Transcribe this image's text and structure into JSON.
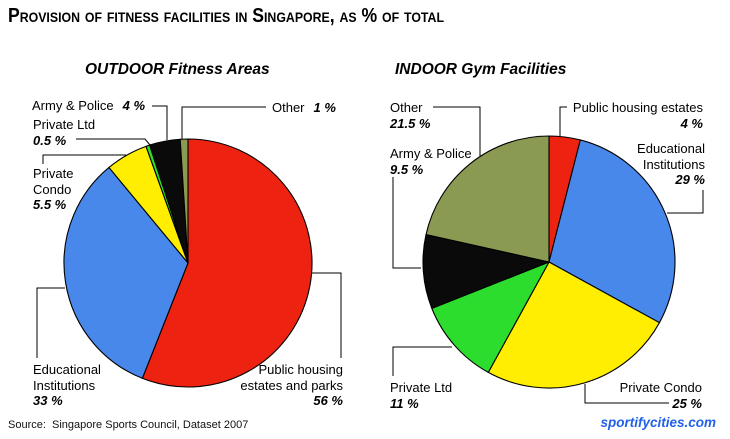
{
  "header": {
    "title": "Provision of fitness facilities in Singapore, as % of total"
  },
  "chart_data": [
    {
      "type": "pie",
      "title": "OUTDOOR Fitness Areas",
      "units": "%",
      "start_angle_deg": 0,
      "direction": "clockwise",
      "legend_position": "none",
      "slices": [
        {
          "label": "Public housing estates and parks",
          "value": 56,
          "display": "56 %",
          "color": "#EE2211"
        },
        {
          "label": "Educational Institutions",
          "value": 33,
          "display": "33 %",
          "color": "#4788EA"
        },
        {
          "label": "Private Condo",
          "value": 5.5,
          "display": "5.5 %",
          "color": "#FFEE00"
        },
        {
          "label": "Private Ltd",
          "value": 0.5,
          "display": "0.5 %",
          "color": "#2DDD2D"
        },
        {
          "label": "Army & Police",
          "value": 4,
          "display": "4 %",
          "color": "#0A0A0A"
        },
        {
          "label": "Other",
          "value": 1,
          "display": "1 %",
          "color": "#8B9A52"
        }
      ]
    },
    {
      "type": "pie",
      "title": "INDOOR Gym Facilities",
      "units": "%",
      "start_angle_deg": 0,
      "direction": "clockwise",
      "legend_position": "none",
      "slices": [
        {
          "label": "Public housing estates",
          "value": 4,
          "display": "4 %",
          "color": "#EE2211"
        },
        {
          "label": "Educational Institutions",
          "value": 29,
          "display": "29 %",
          "color": "#4788EA"
        },
        {
          "label": "Private Condo",
          "value": 25,
          "display": "25 %",
          "color": "#FFEE00"
        },
        {
          "label": "Private Ltd",
          "value": 11,
          "display": "11 %",
          "color": "#2DDD2D"
        },
        {
          "label": "Army & Police",
          "value": 9.5,
          "display": "9.5 %",
          "color": "#0A0A0A"
        },
        {
          "label": "Other",
          "value": 21.5,
          "display": "21.5 %",
          "color": "#8B9A52"
        }
      ]
    }
  ],
  "footer": {
    "source": "Source:  Singapore Sports Council, Dataset 2007",
    "site": "sportifycities.com",
    "site_color": "#2161E9"
  }
}
